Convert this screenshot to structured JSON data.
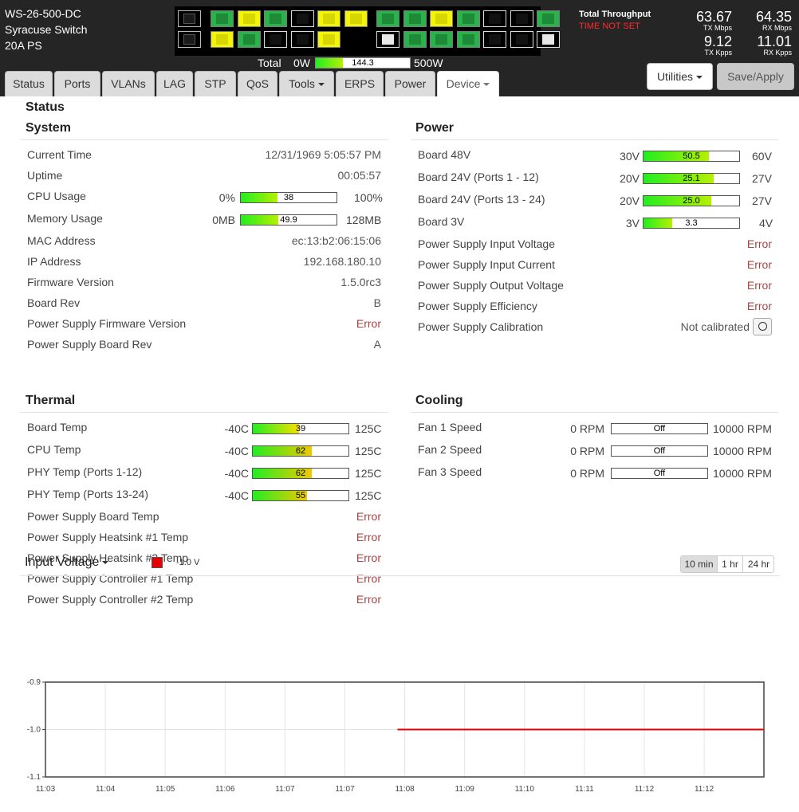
{
  "device": {
    "model": "WS-26-500-DC",
    "name": "Syracuse Switch",
    "ps": "20A PS"
  },
  "ports": {
    "top": [
      "sfp",
      "green",
      "yellow",
      "green",
      "black",
      "yellow",
      "yellow",
      "green",
      "green",
      "yellow",
      "green",
      "black",
      "black",
      "green"
    ],
    "bottom": [
      "sfp",
      "yellow",
      "green",
      "black",
      "black",
      "yellow",
      "white",
      "green",
      "green",
      "green",
      "black",
      "black",
      "white"
    ]
  },
  "total_power": {
    "label": "Total",
    "min": "0W",
    "value": "144.3",
    "max": "500W",
    "fraction": 0.2886
  },
  "throughput": {
    "title": "Total Throughput",
    "warning": "TIME NOT SET",
    "tx_mbps": "63.67",
    "tx_mbps_label": "TX Mbps",
    "rx_mbps": "64.35",
    "rx_mbps_label": "RX Mbps",
    "tx_kpps": "9.12",
    "tx_kpps_label": "TX Kpps",
    "rx_kpps": "11.01",
    "rx_kpps_label": "RX Kpps"
  },
  "tabs": [
    {
      "label": "Status",
      "dropdown": false
    },
    {
      "label": "Ports",
      "dropdown": false
    },
    {
      "label": "VLANs",
      "dropdown": false
    },
    {
      "label": "LAG",
      "dropdown": false
    },
    {
      "label": "STP",
      "dropdown": false
    },
    {
      "label": "QoS",
      "dropdown": false
    },
    {
      "label": "Tools",
      "dropdown": true
    },
    {
      "label": "ERPS",
      "dropdown": false
    },
    {
      "label": "Power",
      "dropdown": false
    },
    {
      "label": "Device",
      "dropdown": true,
      "active": true
    }
  ],
  "buttons": {
    "utilities": "Utilities",
    "save": "Save/Apply"
  },
  "status_heading": "Status",
  "system": {
    "title": "System",
    "current_time": {
      "label": "Current Time",
      "value": "12/31/1969 5:05:57 PM"
    },
    "uptime": {
      "label": "Uptime",
      "value": "00:05:57"
    },
    "cpu": {
      "label": "CPU Usage",
      "min": "0%",
      "max": "100%",
      "value": "38",
      "fraction": 0.38
    },
    "memory": {
      "label": "Memory Usage",
      "min": "0MB",
      "max": "128MB",
      "value": "49.9",
      "fraction": 0.39
    },
    "mac": {
      "label": "MAC Address",
      "value": "ec:13:b2:06:15:06"
    },
    "ip": {
      "label": "IP Address",
      "value": "192.168.180.10"
    },
    "firmware": {
      "label": "Firmware Version",
      "value": "1.5.0rc3"
    },
    "board_rev": {
      "label": "Board Rev",
      "value": "B"
    },
    "ps_firmware": {
      "label": "Power Supply Firmware Version",
      "value": "Error"
    },
    "ps_board_rev": {
      "label": "Power Supply Board Rev",
      "value": "A"
    }
  },
  "power": {
    "title": "Power",
    "rails": [
      {
        "label": "Board 48V",
        "min": "30V",
        "max": "60V",
        "value": "50.5",
        "fraction": 0.68
      },
      {
        "label": "Board 24V (Ports 1 - 12)",
        "min": "20V",
        "max": "27V",
        "value": "25.1",
        "fraction": 0.73
      },
      {
        "label": "Board 24V (Ports 13 - 24)",
        "min": "20V",
        "max": "27V",
        "value": "25.0",
        "fraction": 0.71
      },
      {
        "label": "Board 3V",
        "min": "3V",
        "max": "4V",
        "value": "3.3",
        "fraction": 0.3
      }
    ],
    "items": [
      {
        "label": "Power Supply Input Voltage",
        "value": "Error"
      },
      {
        "label": "Power Supply Input Current",
        "value": "Error"
      },
      {
        "label": "Power Supply Output Voltage",
        "value": "Error"
      },
      {
        "label": "Power Supply Efficiency",
        "value": "Error"
      }
    ],
    "calibration": {
      "label": "Power Supply Calibration",
      "value": "Not calibrated"
    }
  },
  "thermal": {
    "title": "Thermal",
    "temps": [
      {
        "label": "Board Temp",
        "min": "-40C",
        "max": "125C",
        "value": "39",
        "fraction": 0.48
      },
      {
        "label": "CPU Temp",
        "min": "-40C",
        "max": "125C",
        "value": "62",
        "fraction": 0.62
      },
      {
        "label": "PHY Temp (Ports 1-12)",
        "min": "-40C",
        "max": "125C",
        "value": "62",
        "fraction": 0.62
      },
      {
        "label": "PHY Temp (Ports 13-24)",
        "min": "-40C",
        "max": "125C",
        "value": "55",
        "fraction": 0.57
      }
    ],
    "items": [
      {
        "label": "Power Supply Board Temp",
        "value": "Error"
      },
      {
        "label": "Power Supply Heatsink #1 Temp",
        "value": "Error"
      },
      {
        "label": "Power Supply Heatsink #2 Temp",
        "value": "Error"
      },
      {
        "label": "Power Supply Controller #1 Temp",
        "value": "Error"
      },
      {
        "label": "Power Supply Controller #2 Temp",
        "value": "Error"
      }
    ]
  },
  "cooling": {
    "title": "Cooling",
    "fans": [
      {
        "label": "Fan 1 Speed",
        "min": "0 RPM",
        "max": "10000 RPM",
        "value": "Off",
        "fraction": 0
      },
      {
        "label": "Fan 2 Speed",
        "min": "0 RPM",
        "max": "10000 RPM",
        "value": "Off",
        "fraction": 0
      },
      {
        "label": "Fan 3 Speed",
        "min": "0 RPM",
        "max": "10000 RPM",
        "value": "Off",
        "fraction": 0
      }
    ]
  },
  "chart_header": {
    "title": "Input Voltage",
    "legend_value": "-1.0 V",
    "ranges": [
      "10 min",
      "1 hr",
      "24 hr"
    ],
    "active_range": "10 min"
  },
  "chart_data": {
    "type": "line",
    "title": "Input Voltage",
    "ylim": [
      -1.1,
      -0.9
    ],
    "y_ticks": [
      "-0.9",
      "-1.0",
      "-1.1"
    ],
    "x_ticks": [
      "11:03",
      "11:04",
      "11:05",
      "11:06",
      "11:07",
      "11:08",
      "11:09",
      "11:10",
      "11:11",
      "11:12"
    ],
    "x_ticks_shown": [
      "11:03",
      "11:04",
      "11:05",
      "11:06",
      "11:07",
      "11:07",
      "11:08",
      "11:09",
      "11:10",
      "11:11",
      "11:12",
      "11:12"
    ],
    "grid": true,
    "series": [
      {
        "color": "#e60000",
        "x_start_fraction": 0.49,
        "x_end_fraction": 1.0,
        "values": [
          -1.0,
          -1.0
        ]
      }
    ],
    "legend_color": "#e60000"
  }
}
